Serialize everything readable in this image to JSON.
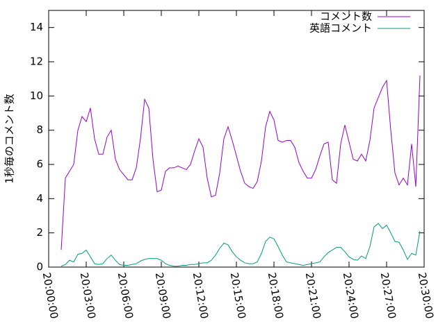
{
  "chart_data": {
    "type": "line",
    "ylabel": "1秒毎のコメント数",
    "xlim": [
      "20:00:00",
      "20:30:00"
    ],
    "xticks": [
      "20:00:00",
      "20:03:00",
      "20:06:00",
      "20:09:00",
      "20:12:00",
      "20:15:00",
      "20:18:00",
      "20:21:00",
      "20:24:00",
      "20:27:00",
      "20:30:00"
    ],
    "ylim": [
      0,
      15
    ],
    "yticks": [
      0,
      2,
      4,
      6,
      8,
      10,
      12,
      14
    ],
    "legend": "top-right",
    "x": [
      "20:01:00",
      "20:01:20",
      "20:01:40",
      "20:02:00",
      "20:02:20",
      "20:02:40",
      "20:03:00",
      "20:03:20",
      "20:03:40",
      "20:04:00",
      "20:04:20",
      "20:04:40",
      "20:05:00",
      "20:05:20",
      "20:05:40",
      "20:06:00",
      "20:06:20",
      "20:06:40",
      "20:07:00",
      "20:07:20",
      "20:07:40",
      "20:08:00",
      "20:08:20",
      "20:08:40",
      "20:09:00",
      "20:09:20",
      "20:09:40",
      "20:10:00",
      "20:10:20",
      "20:10:40",
      "20:11:00",
      "20:11:20",
      "20:11:40",
      "20:12:00",
      "20:12:20",
      "20:12:40",
      "20:13:00",
      "20:13:20",
      "20:13:40",
      "20:14:00",
      "20:14:20",
      "20:14:40",
      "20:15:00",
      "20:15:20",
      "20:15:40",
      "20:16:00",
      "20:16:20",
      "20:16:40",
      "20:17:00",
      "20:17:20",
      "20:17:40",
      "20:18:00",
      "20:18:20",
      "20:18:40",
      "20:19:00",
      "20:19:20",
      "20:19:40",
      "20:20:00",
      "20:20:20",
      "20:20:40",
      "20:21:00",
      "20:21:20",
      "20:21:40",
      "20:22:00",
      "20:22:20",
      "20:22:40",
      "20:23:00",
      "20:23:20",
      "20:23:40",
      "20:24:00",
      "20:24:20",
      "20:24:40",
      "20:25:00",
      "20:25:20",
      "20:25:40",
      "20:26:00",
      "20:26:20",
      "20:26:40",
      "20:27:00",
      "20:27:20",
      "20:27:40",
      "20:28:00",
      "20:28:20",
      "20:28:40",
      "20:29:00",
      "20:29:20",
      "20:29:40"
    ],
    "series": [
      {
        "name": "コメント数",
        "color": "#9400d3",
        "values": [
          1.0,
          5.2,
          5.6,
          6.0,
          8.0,
          8.8,
          8.5,
          9.3,
          7.5,
          6.6,
          6.6,
          7.6,
          8.0,
          6.3,
          5.7,
          5.4,
          5.1,
          5.1,
          5.8,
          7.5,
          9.8,
          9.3,
          6.3,
          4.4,
          4.5,
          5.6,
          5.8,
          5.8,
          5.9,
          5.8,
          5.7,
          6.0,
          6.8,
          7.5,
          7.0,
          5.2,
          4.1,
          4.2,
          5.5,
          7.5,
          8.2,
          7.4,
          6.5,
          5.6,
          4.9,
          4.7,
          4.6,
          5.0,
          6.2,
          8.2,
          9.1,
          8.6,
          7.4,
          7.3,
          7.4,
          7.4,
          7.0,
          6.1,
          5.6,
          5.2,
          5.2,
          5.7,
          6.5,
          7.2,
          7.3,
          5.1,
          4.9,
          7.2,
          8.3,
          7.3,
          6.3,
          6.2,
          6.6,
          6.2,
          7.4,
          9.3,
          9.9,
          10.5,
          10.9,
          8.0,
          5.5,
          4.8,
          5.2,
          4.8,
          7.2,
          4.7,
          11.2
        ]
      },
      {
        "name": "英語コメント",
        "color": "#009e73",
        "values": [
          0.05,
          0.15,
          0.4,
          0.3,
          0.75,
          0.8,
          1.0,
          0.6,
          0.2,
          0.15,
          0.2,
          0.5,
          0.7,
          0.4,
          0.15,
          0.1,
          0.1,
          0.15,
          0.2,
          0.35,
          0.45,
          0.5,
          0.5,
          0.5,
          0.4,
          0.2,
          0.1,
          0.05,
          0.05,
          0.1,
          0.1,
          0.15,
          0.15,
          0.2,
          0.25,
          0.25,
          0.4,
          0.7,
          1.1,
          1.4,
          1.3,
          0.9,
          0.6,
          0.4,
          0.25,
          0.2,
          0.2,
          0.3,
          0.8,
          1.5,
          1.75,
          1.65,
          1.2,
          0.7,
          0.3,
          0.25,
          0.2,
          0.15,
          0.1,
          0.15,
          0.2,
          0.25,
          0.3,
          0.6,
          0.85,
          1.0,
          1.15,
          1.15,
          0.9,
          0.6,
          0.45,
          0.4,
          0.65,
          0.5,
          1.2,
          2.35,
          2.55,
          2.25,
          2.45,
          2.0,
          1.5,
          1.45,
          1.0,
          0.45,
          0.8,
          0.7,
          2.1
        ]
      }
    ]
  }
}
